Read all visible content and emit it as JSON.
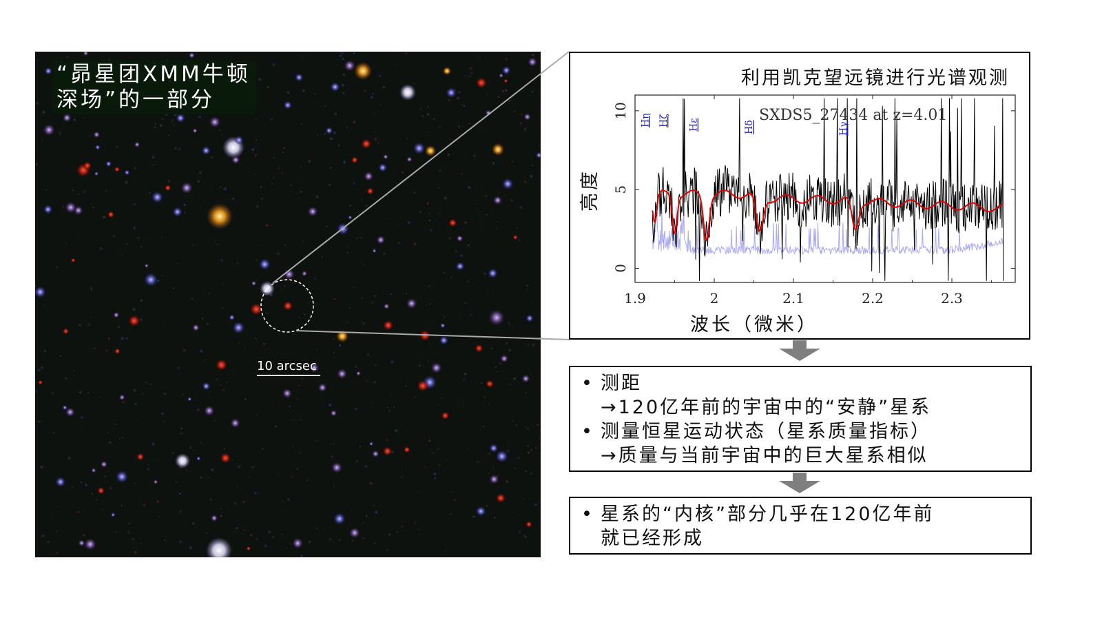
{
  "image": {
    "title_lines": [
      "“昴星团XMM牛顿",
      " 深场”的一部分"
    ],
    "scalebar_label": "10 arcsec"
  },
  "spectrum": {
    "title": "利用凯克望远镜进行光谱观测",
    "object_label": "SXDS5_27434 at z=4.01",
    "ylabel": "亮度",
    "xlabel": "波长（微米）",
    "x_ticks": [
      "1.9",
      "2",
      "2.1",
      "2.2",
      "2.3"
    ],
    "y_ticks": [
      "0",
      "5",
      "10"
    ],
    "lines": [
      "Hη",
      "Hζ",
      "Hε",
      "Hδ",
      "Hγ"
    ],
    "colors": {
      "observed": "#000000",
      "model": "#e00000",
      "noise": "#a9a9f0",
      "line_labels": "#2020c0"
    }
  },
  "box1": {
    "items": [
      {
        "lines": [
          "测距",
          "→120亿年前的宇宙中的“安静”星系"
        ]
      },
      {
        "lines": [
          "测量恒星运动状态（星系质量指标）",
          "→质量与当前宇宙中的巨大星系相似"
        ]
      }
    ]
  },
  "box2": {
    "items": [
      {
        "lines": [
          "星系的“内核”部分几乎在120亿年前",
          "就已经形成"
        ]
      }
    ]
  },
  "colors": {
    "arrow": "#7f7f7f",
    "zoom_line": "#aaaaaa"
  }
}
